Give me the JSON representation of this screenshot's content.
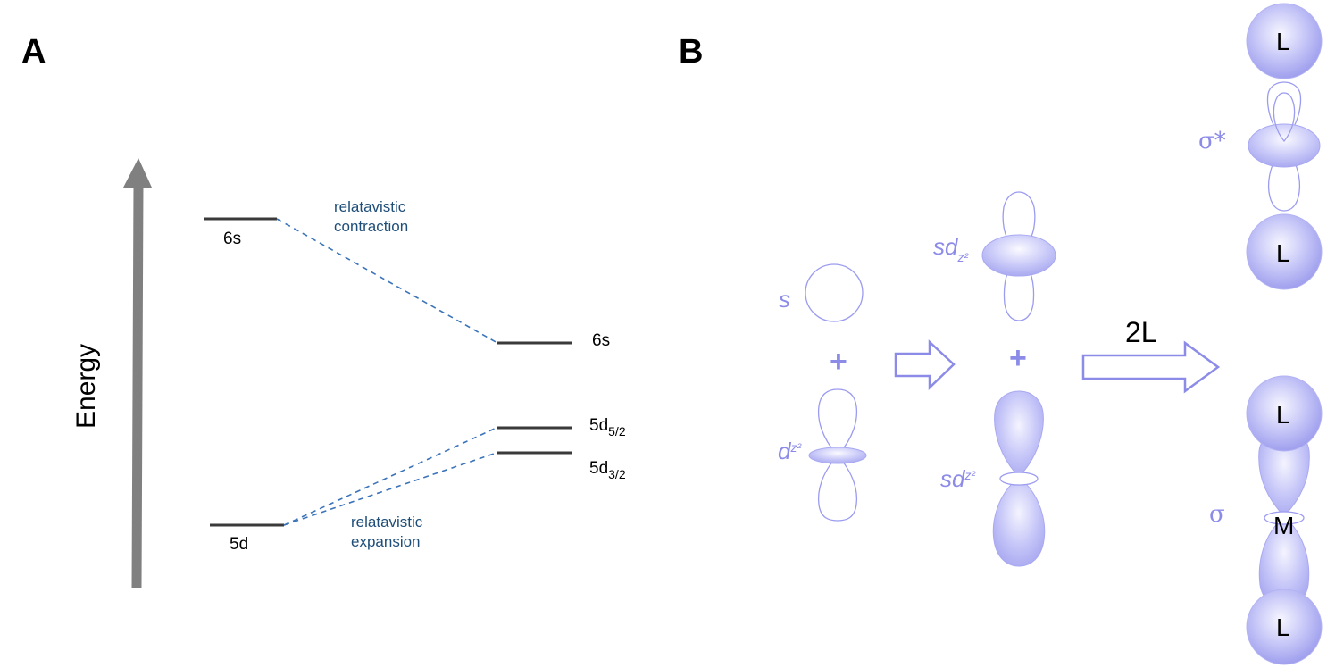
{
  "panels": {
    "a": "A",
    "b": "B"
  },
  "panel_a": {
    "axis_label": "Energy",
    "left_levels": {
      "6s": "6s",
      "5d": "5d"
    },
    "right_levels": {
      "6s": "6s",
      "5d52_main": "5d",
      "5d52_sub": "5/2",
      "5d32_main": "5d",
      "5d32_sub": "3/2"
    },
    "notes": {
      "contraction_1": "relatavistic",
      "contraction_2": "contraction",
      "expansion_1": "relatavistic",
      "expansion_2": "expansion"
    }
  },
  "panel_b": {
    "s_label": "s",
    "dz2_main": "d",
    "dz2_sub": "z²",
    "sdz2_main": "sd",
    "sdz2_sub": "z²",
    "plus": "+",
    "two_l": "2L",
    "sigma_star": "σ*",
    "sigma": "σ",
    "ligand": "L",
    "metal": "M"
  },
  "colors": {
    "orbital": "#8c8ce8",
    "level_line": "#3a3a3a",
    "dashed": "#3b74b8",
    "energy_arrow": "#808080"
  }
}
